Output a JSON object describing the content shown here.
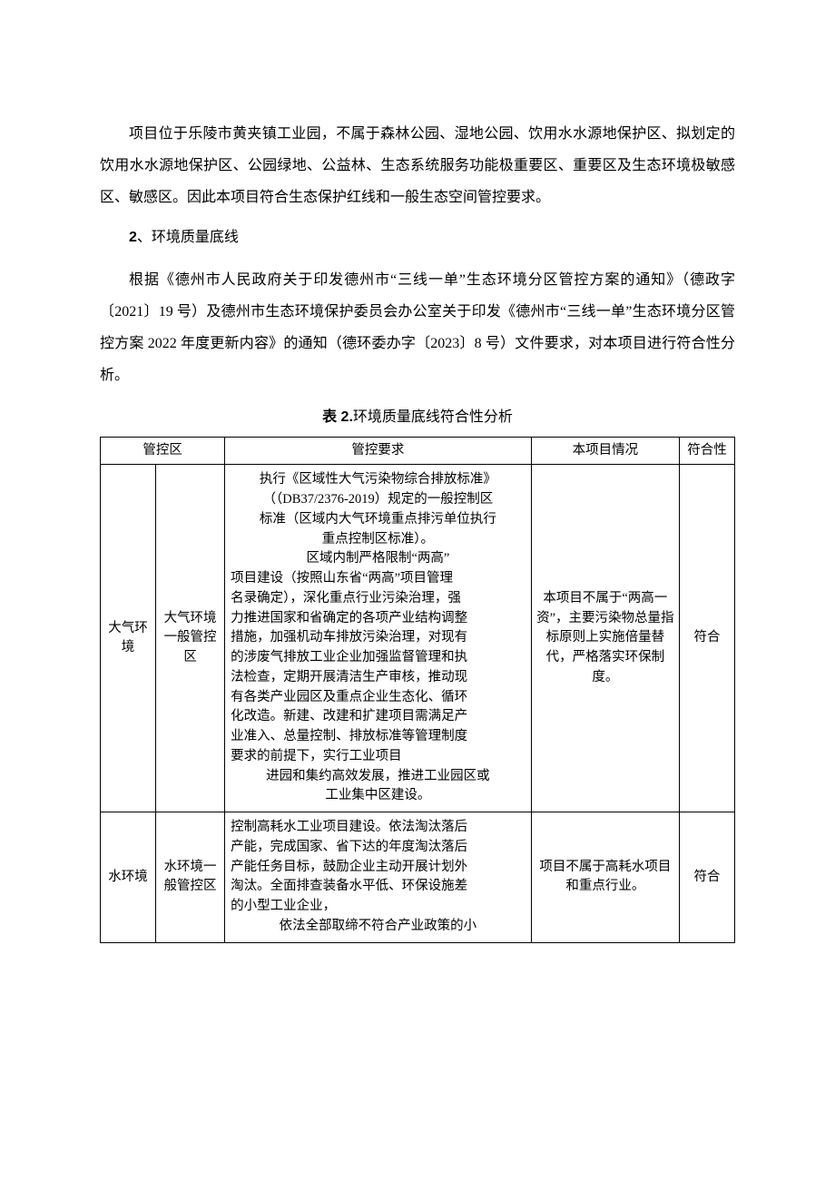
{
  "colors": {
    "text": "#000000",
    "background": "#ffffff",
    "table_border": "#000000"
  },
  "typography": {
    "body_font": "SimSun",
    "body_size_pt": 12,
    "line_height": 2.2,
    "table_font_size_pt": 11
  },
  "body": {
    "p1": "项目位于乐陵市黄夹镇工业园，不属于森林公园、湿地公园、饮用水水源地保护区、拟划定的饮用水水源地保护区、公园绿地、公益林、生态系统服务功能极重要区、重要区及生态环境极敏感区、敏感区。因此本项目符合生态保护红线和一般生态空间管控要求。",
    "sec_num": "2",
    "sec_title": "、环境质量底线",
    "p2": "根据《德州市人民政府关于印发德州市“三线一单”生态环境分区管控方案的通知》（德政字〔2021〕19 号）及德州市生态环境保护委员会办公室关于印发《德州市“三线一单”生态环境分区管控方案 2022 年度更新内容》的通知（德环委办字〔2023〕8 号）文件要求，对本项目进行符合性分析。"
  },
  "table": {
    "caption_prefix": "表 2.",
    "caption_title": "环境质量底线符合性分析",
    "headers": {
      "h1": "管控区",
      "h2": "管控要求",
      "h3": "本项目情况",
      "h4": "符合性"
    },
    "rows": [
      {
        "zone_a": "大气环境",
        "zone_b": "大气环境一般管控区",
        "requirement_lines": [
          {
            "t": "执行《区域性大气污染物综合排放标准》",
            "align": "center"
          },
          {
            "t": "（（DB37/2376-2019）规定的一般控制区",
            "align": "center"
          },
          {
            "t": "标准（区域内大气环境重点排污单位执行",
            "align": "center"
          },
          {
            "t": "重点控制区标准）。",
            "align": "center"
          },
          {
            "t": "区域内制严格限制“两高”",
            "align": "center"
          },
          {
            "t": "项目建设（按照山东省“两高”项目管理",
            "align": "left"
          },
          {
            "t": "名录确定），深化重点行业污染治理，强",
            "align": "left"
          },
          {
            "t": "力推进国家和省确定的各项产业结构调整",
            "align": "left"
          },
          {
            "t": "措施，加强机动车排放污染治理，对现有",
            "align": "left"
          },
          {
            "t": "的涉废气排放工业企业加强监督管理和执",
            "align": "left"
          },
          {
            "t": "法检查，定期开展清洁生产审核，推动现",
            "align": "left"
          },
          {
            "t": "有各类产业园区及重点企业生态化、循环",
            "align": "left"
          },
          {
            "t": "化改造。新建、改建和扩建项目需满足产",
            "align": "left"
          },
          {
            "t": "业准入、总量控制、排放标准等管理制度",
            "align": "left"
          },
          {
            "t": "要求的前提下，实行工业项目",
            "align": "left"
          },
          {
            "t": "进园和集约高效发展，推进工业园区或",
            "align": "center"
          },
          {
            "t": "工业集中区建设。",
            "align": "center"
          }
        ],
        "situation": "本项目不属于“两高一资”，主要污染物总量指标原则上实施倍量替代，严格落实环保制度。",
        "compliance": "符合"
      },
      {
        "zone_a": "水环境",
        "zone_b": "水环境一般管控区",
        "requirement_lines": [
          {
            "t": "控制高耗水工业项目建设。依法淘汰落后",
            "align": "left"
          },
          {
            "t": "产能，完成国家、省下达的年度淘汰落后",
            "align": "left"
          },
          {
            "t": "产能任务目标，鼓励企业主动开展计划外",
            "align": "left"
          },
          {
            "t": "淘汰。全面排查装备水平低、环保设施差",
            "align": "left"
          },
          {
            "t": "的小型工业企业，",
            "align": "left"
          },
          {
            "t": "依法全部取缔不符合产业政策的小",
            "align": "center"
          }
        ],
        "situation": "项目不属于高耗水项目和重点行业。",
        "compliance": "符合"
      }
    ]
  }
}
